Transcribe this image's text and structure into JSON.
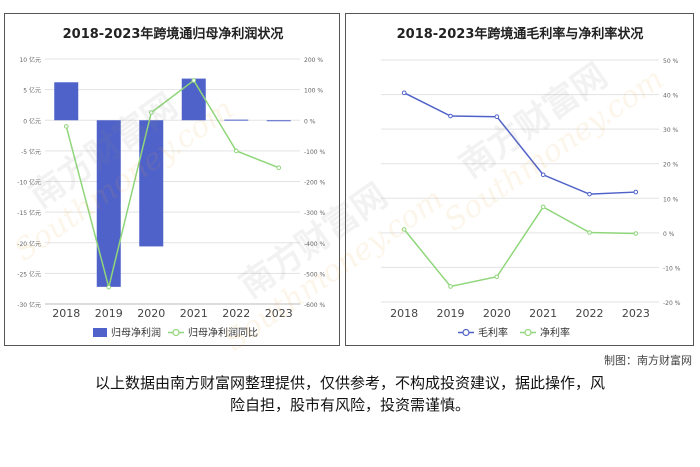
{
  "chart_data": [
    {
      "type": "bar+line",
      "title": "2018-2023年跨境通归母净利润状况",
      "categories": [
        "2018",
        "2019",
        "2020",
        "2021",
        "2022",
        "2023"
      ],
      "left_axis": {
        "ticks": [
          "10 亿元",
          "5 亿元",
          "0 亿元",
          "-5 亿元",
          "-10 亿元",
          "-15 亿元",
          "-20 亿元",
          "-25 亿元",
          "-30 亿元"
        ],
        "ylim": [
          -30,
          10
        ],
        "unit": "亿元"
      },
      "right_axis": {
        "ticks": [
          "200 %",
          "100 %",
          "0 %",
          "-100 %",
          "-200 %",
          "-300 %",
          "-400 %",
          "-500 %",
          "-600 %"
        ],
        "ylim": [
          -600,
          200
        ],
        "unit": "%"
      },
      "series": [
        {
          "name": "归母净利润",
          "kind": "bar",
          "axis": "left",
          "color": "#4f62c9",
          "values": [
            6.2,
            -27.2,
            -20.6,
            6.8,
            0.1,
            -0.1
          ]
        },
        {
          "name": "归母净利润同比",
          "kind": "line",
          "axis": "right",
          "color": "#8fd67a",
          "values": [
            -20,
            -545,
            25,
            130,
            -100,
            -155
          ]
        }
      ],
      "legend_position": "bottom"
    },
    {
      "type": "line",
      "title": "2018-2023年跨境通毛利率与净利率状况",
      "categories": [
        "2018",
        "2019",
        "2020",
        "2021",
        "2022",
        "2023"
      ],
      "right_axis": {
        "ticks": [
          "50 %",
          "40 %",
          "30 %",
          "20 %",
          "10 %",
          "0 %",
          "-10 %",
          "-20 %"
        ],
        "ylim": [
          -20,
          50
        ],
        "unit": "%"
      },
      "series": [
        {
          "name": "毛利率",
          "color": "#4f62c9",
          "values": [
            40.5,
            33.8,
            33.6,
            16.8,
            11.2,
            11.8
          ]
        },
        {
          "name": "净利率",
          "color": "#8fd67a",
          "values": [
            1.0,
            -15.5,
            -12.7,
            7.5,
            0.1,
            -0.2
          ]
        }
      ],
      "legend_position": "bottom"
    }
  ],
  "credit": "制图：南方财富网",
  "disclaimer": {
    "line1": "以上数据由南方财富网整理提供，仅供参考，不构成投资建议，据此操作，风",
    "line2": "险自担，股市有风险，投资需谨慎。"
  },
  "watermark": {
    "cn": "南方财富网",
    "en": "Southmoney.com"
  }
}
